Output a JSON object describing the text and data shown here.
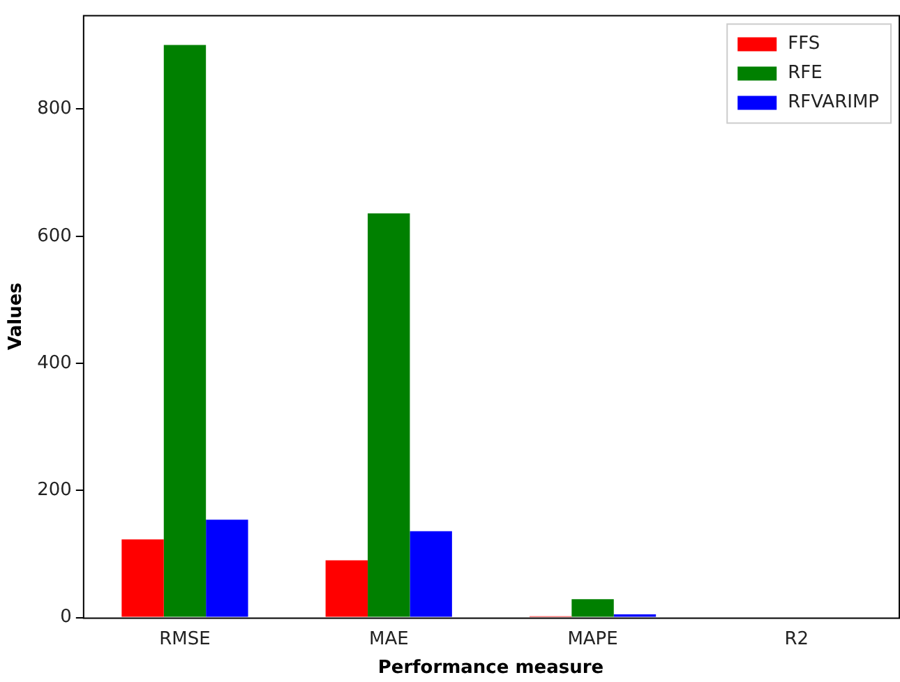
{
  "chart_data": {
    "type": "bar",
    "xlabel": "Performance measure",
    "ylabel": "Values",
    "categories": [
      "RMSE",
      "MAE",
      "MAPE",
      "R2"
    ],
    "series": [
      {
        "name": "FFS",
        "color": "#ff0000",
        "values": [
          123,
          90,
          2,
          null
        ]
      },
      {
        "name": "RFE",
        "color": "#008000",
        "values": [
          901,
          636,
          29,
          null
        ]
      },
      {
        "name": "RFVARIMP",
        "color": "#0000ff",
        "values": [
          154,
          136,
          5,
          null
        ]
      }
    ],
    "ylim": [
      0,
      948
    ],
    "yticks": [
      0,
      200,
      400,
      600,
      800
    ],
    "grid": false,
    "legend": "top right"
  }
}
